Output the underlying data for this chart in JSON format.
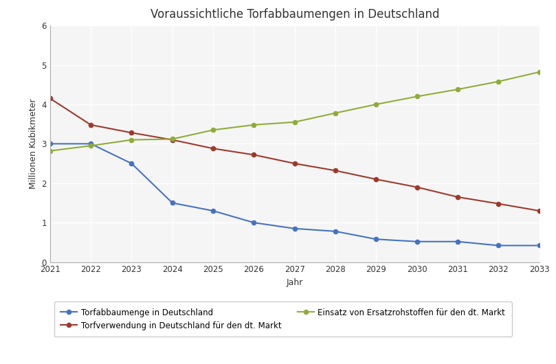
{
  "title": "Voraussichtliche Torfabbaumengen in Deutschland",
  "xlabel": "Jahr",
  "ylabel": "Millionen Kubikmeter",
  "years": [
    2021,
    2022,
    2023,
    2024,
    2025,
    2026,
    2027,
    2028,
    2029,
    2030,
    2031,
    2032,
    2033
  ],
  "torfabbaumenge": [
    3.0,
    3.0,
    2.5,
    1.5,
    1.3,
    1.0,
    0.85,
    0.78,
    0.58,
    0.52,
    0.52,
    0.42,
    0.42
  ],
  "torfverwendung": [
    4.15,
    3.48,
    3.28,
    3.1,
    2.88,
    2.72,
    2.5,
    2.32,
    2.1,
    1.9,
    1.65,
    1.48,
    1.3
  ],
  "ersatzrohstoffe": [
    2.82,
    2.95,
    3.1,
    3.12,
    3.35,
    3.48,
    3.55,
    3.78,
    4.0,
    4.2,
    4.38,
    4.58,
    4.82
  ],
  "torfabbaumenge_color": "#4472c4",
  "torfverwendung_color": "#a0382a",
  "ersatzrohstoffe_color": "#8fac38",
  "ylim": [
    0,
    6
  ],
  "yticks": [
    0,
    1,
    2,
    3,
    4,
    5,
    6
  ],
  "legend_labels": [
    "Torfabbaumenge in Deutschland",
    "Torfverwendung in Deutschland für den dt. Markt",
    "Einsatz von Ersatzrohstoffen für den dt. Markt"
  ],
  "background_color": "#ffffff",
  "plot_bg_color": "#f5f5f5",
  "grid_color": "#ffffff",
  "title_fontsize": 12,
  "axis_label_fontsize": 9,
  "tick_fontsize": 8.5,
  "legend_fontsize": 8.5
}
